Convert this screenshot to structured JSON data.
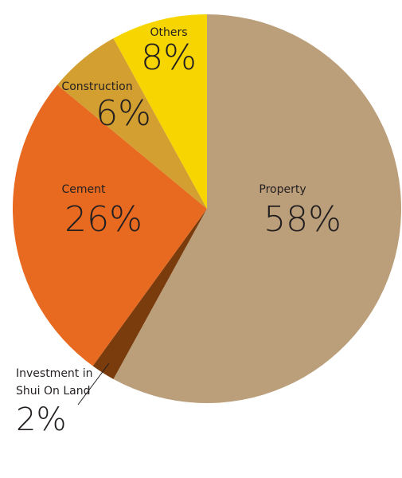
{
  "chart_data": {
    "type": "pie",
    "categories": [
      "Property",
      "Investment in Shui On Land",
      "Cement",
      "Construction",
      "Others"
    ],
    "values": [
      58,
      2,
      26,
      6,
      8
    ],
    "value_labels": [
      "58%",
      "2%",
      "26%",
      "6%",
      "8%"
    ],
    "colors": [
      "#bb9f7a",
      "#7a3b0d",
      "#e86a20",
      "#d29f30",
      "#f6d500"
    ]
  }
}
